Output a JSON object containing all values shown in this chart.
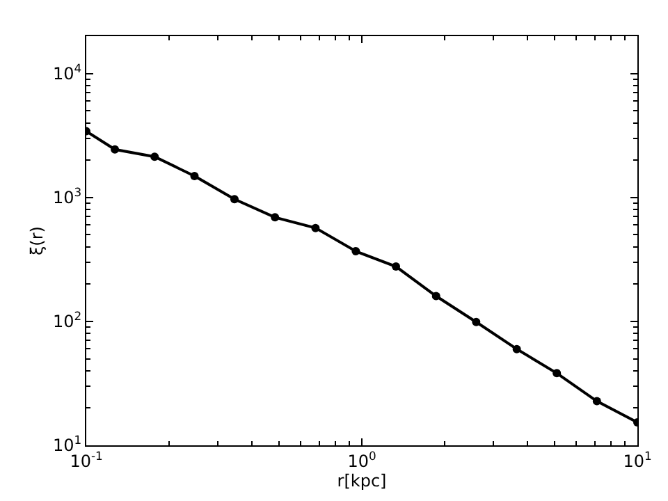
{
  "chart_data": {
    "type": "line",
    "xlabel": "r[kpc]",
    "ylabel": "ξ(r)",
    "log": "xy",
    "marker": "circle",
    "line_style": "solid",
    "x": [
      0.1,
      0.127,
      0.177,
      0.247,
      0.345,
      0.484,
      0.679,
      0.951,
      1.33,
      1.86,
      2.6,
      3.65,
      5.1,
      7.13,
      10
    ],
    "series": [
      {
        "color": "#000000",
        "values": [
          3420,
          2440,
          2130,
          1490,
          968,
          691,
          567,
          368,
          277,
          160,
          98.8,
          59.8,
          38.2,
          22.7,
          15.3
        ]
      }
    ],
    "xlim": [
      0.1,
      10
    ],
    "ylim": [
      10,
      20000
    ],
    "xticks": [
      {
        "value": 0.1,
        "label": "10$^{-1}$"
      },
      {
        "value": 1,
        "label": "10$^{0}$"
      },
      {
        "value": 10,
        "label": "10$^{1}$"
      }
    ],
    "yticks": [
      {
        "value": 10,
        "label": "10$^{1}$"
      },
      {
        "value": 100,
        "label": "10$^{2}$"
      },
      {
        "value": 1000,
        "label": "10$^{3}$"
      },
      {
        "value": 10000,
        "label": "10$^{4}$"
      }
    ]
  }
}
